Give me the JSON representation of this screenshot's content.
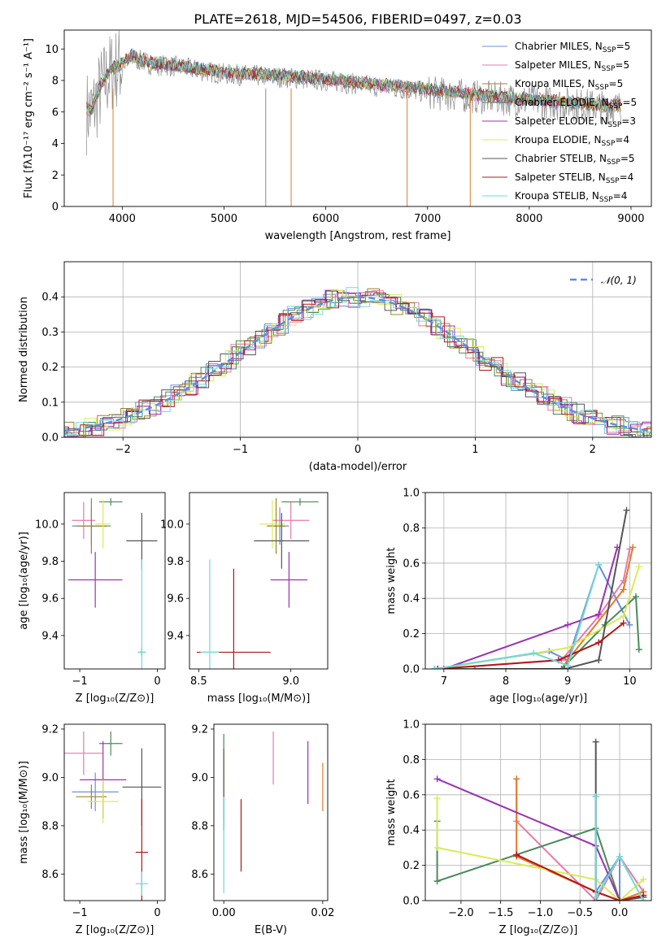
{
  "title": "PLATE=2618, MJD=54506, FIBERID=0497, z=0.03",
  "colors": {
    "Chabrier MILES": "#6b8fd6",
    "Salpeter MILES": "#e87aa8",
    "Kroupa MILES": "#a08228",
    "Chabrier ELODIE": "#4a8a5a",
    "Salpeter ELODIE": "#9a32b0",
    "Kroupa ELODIE": "#d8ec58",
    "Chabrier STELIB": "#555555",
    "Salpeter STELIB": "#b01818",
    "Kroupa STELIB": "#72d8d8",
    "orange": "#e07b2a",
    "gray": "#8c8c8c",
    "normal": "#5b8fd6"
  },
  "chart_data": [
    {
      "id": "spectrum",
      "type": "line",
      "xlabel": "wavelength [Angstrom, rest frame]",
      "ylabel": "Flux [fλ10⁻¹⁷ erg cm⁻² s⁻¹ A⁻¹]",
      "xlim": [
        3430,
        9200
      ],
      "ylim": [
        0,
        11.2
      ],
      "xticks": [
        4000,
        5000,
        6000,
        7000,
        8000,
        9000
      ],
      "yticks": [
        0,
        2,
        4,
        6,
        8,
        10
      ],
      "x": [
        3700,
        3800,
        3900,
        4000,
        4100,
        4200,
        4300,
        4500,
        4700,
        5000,
        5300,
        5600,
        6000,
        6400,
        6800,
        7200,
        7600,
        8000,
        8400,
        8800
      ],
      "series": [
        {
          "name": "Chabrier MILES, N_SSP=5",
          "color": "#6b8fd6"
        },
        {
          "name": "Salpeter MILES, N_SSP=5",
          "color": "#e87aa8"
        },
        {
          "name": "Kroupa MILES, N_SSP=5",
          "color": "#a08228"
        },
        {
          "name": "Chabrier ELODIE, N_SSP=5",
          "color": "#4a8a5a"
        },
        {
          "name": "Salpeter ELODIE, N_SSP=3",
          "color": "#9a32b0"
        },
        {
          "name": "Kroupa ELODIE, N_SSP=4",
          "color": "#d8ec58"
        },
        {
          "name": "Chabrier STELIB, N_SSP=5",
          "color": "#555555"
        },
        {
          "name": "Salpeter STELIB, N_SSP=4",
          "color": "#b01818"
        },
        {
          "name": "Kroupa STELIB, N_SSP=4",
          "color": "#72d8d8"
        }
      ],
      "model_y": [
        6.2,
        7.9,
        8.8,
        9.1,
        9.6,
        9.3,
        9.1,
        9.0,
        8.8,
        8.5,
        8.4,
        8.3,
        8.1,
        7.8,
        7.6,
        7.3,
        7.0,
        6.8,
        6.6,
        6.4
      ],
      "data_y": [
        6.0,
        7.6,
        8.6,
        9.0,
        9.4,
        9.2,
        9.0,
        8.9,
        8.7,
        8.4,
        8.3,
        8.2,
        8.0,
        7.7,
        7.4,
        7.1,
        6.9,
        6.7,
        6.5,
        6.3
      ]
    },
    {
      "id": "residuals",
      "type": "line",
      "xlabel": "(data-model)/error",
      "ylabel": "Normed distribution",
      "xlim": [
        -2.5,
        2.5
      ],
      "ylim": [
        0,
        0.5
      ],
      "xticks": [
        -2,
        -1,
        0,
        1,
        2
      ],
      "xtick_labels": [
        "−2",
        "−1",
        "0",
        "1",
        "2"
      ],
      "yticks": [
        0.0,
        0.1,
        0.2,
        0.3,
        0.4
      ],
      "legend": [
        "𝒩(0, 1)"
      ],
      "legend_position": "top-right"
    },
    {
      "id": "age-vs-Z",
      "type": "scatter",
      "xlabel": "Z [log₁₀(Z/Z⊙)]",
      "ylabel": "age  [log₁₀(age/yr)]",
      "xlim": [
        -1.2,
        0.1
      ],
      "ylim": [
        9.22,
        10.17
      ],
      "xticks": [
        -1,
        0
      ],
      "xtick_labels": [
        "−1",
        "0"
      ],
      "yticks": [
        9.4,
        9.6,
        9.8,
        10.0
      ],
      "points": [
        {
          "x": -0.85,
          "y": 9.99,
          "xerr": 0.25,
          "yerr": 0.1,
          "color": "#6b8fd6"
        },
        {
          "x": -0.95,
          "y": 10.02,
          "xerr": 0.15,
          "yerr": 0.1,
          "color": "#e87aa8"
        },
        {
          "x": -0.85,
          "y": 9.99,
          "xerr": 0.2,
          "yerr": 0.15,
          "color": "#a08228"
        },
        {
          "x": -0.6,
          "y": 10.12,
          "xerr": 0.15,
          "yerr": 0.02,
          "color": "#4a8a5a"
        },
        {
          "x": -0.8,
          "y": 9.7,
          "xerr": 0.35,
          "yerr": 0.15,
          "color": "#9a32b0"
        },
        {
          "x": -0.7,
          "y": 10.0,
          "xerr": 0.1,
          "yerr": 0.13,
          "color": "#d8ec58"
        },
        {
          "x": -0.2,
          "y": 9.91,
          "xerr": 0.2,
          "yerr": 0.15,
          "color": "#555555"
        },
        {
          "x": -0.2,
          "y": 9.31,
          "xerr": 0.05,
          "yerr": 0.02,
          "color": "#b01818"
        },
        {
          "x": -0.2,
          "y": 9.31,
          "xerr": 0.05,
          "yerr": 0.5,
          "color": "#72d8d8"
        }
      ]
    },
    {
      "id": "age-vs-mass",
      "type": "scatter",
      "xlabel": "mass [log₁₀(M/M⊙)]",
      "ylabel": "",
      "xlim": [
        8.45,
        9.2
      ],
      "ylim": [
        9.22,
        10.17
      ],
      "xticks": [
        8.5,
        9.0
      ],
      "yticks": [
        9.4,
        9.6,
        9.8,
        10.0
      ],
      "points": [
        {
          "x": 8.94,
          "y": 9.99,
          "xerr": 0.05,
          "yerr": 0.1,
          "color": "#6b8fd6"
        },
        {
          "x": 9.0,
          "y": 10.02,
          "xerr": 0.1,
          "yerr": 0.1,
          "color": "#e87aa8"
        },
        {
          "x": 8.92,
          "y": 9.99,
          "xerr": 0.05,
          "yerr": 0.15,
          "color": "#a08228"
        },
        {
          "x": 9.05,
          "y": 10.12,
          "xerr": 0.1,
          "yerr": 0.02,
          "color": "#4a8a5a"
        },
        {
          "x": 8.99,
          "y": 9.7,
          "xerr": 0.1,
          "yerr": 0.15,
          "color": "#9a32b0"
        },
        {
          "x": 8.9,
          "y": 10.0,
          "xerr": 0.07,
          "yerr": 0.13,
          "color": "#d8ec58"
        },
        {
          "x": 8.95,
          "y": 9.91,
          "xerr": 0.15,
          "yerr": 0.15,
          "color": "#555555"
        },
        {
          "x": 8.69,
          "y": 9.31,
          "xerr": 0.2,
          "yerr": 0.45,
          "color": "#b01818"
        },
        {
          "x": 8.56,
          "y": 9.31,
          "xerr": 0.05,
          "yerr": 0.5,
          "color": "#72d8d8"
        }
      ]
    },
    {
      "id": "weight-vs-age",
      "type": "line",
      "xlabel": "age  [log₁₀(age/yr)]",
      "ylabel": "mass weight",
      "xlim": [
        6.7,
        10.35
      ],
      "ylim": [
        0,
        1.0
      ],
      "xticks": [
        7,
        8,
        9,
        10
      ],
      "yticks": [
        0.0,
        0.2,
        0.4,
        0.6,
        0.8,
        1.0
      ],
      "series": [
        {
          "color": "#6b8fd6",
          "x": [
            6.85,
            8.7,
            9.0,
            9.5,
            10.0
          ],
          "y": [
            0.0,
            0.1,
            0.05,
            0.59,
            0.25
          ]
        },
        {
          "color": "#e87aa8",
          "x": [
            6.85,
            8.9,
            9.5,
            9.9,
            10.0
          ],
          "y": [
            0.0,
            0.05,
            0.3,
            0.5,
            0.68
          ]
        },
        {
          "color": "#e07b2a",
          "x": [
            6.9,
            8.9,
            9.0,
            9.9,
            10.05
          ],
          "y": [
            0.0,
            0.0,
            0.05,
            0.45,
            0.69
          ]
        },
        {
          "color": "#4a8a5a",
          "x": [
            6.9,
            8.9,
            9.6,
            10.1,
            10.15
          ],
          "y": [
            0.0,
            0.0,
            0.25,
            0.41,
            0.11
          ]
        },
        {
          "color": "#9a32b0",
          "x": [
            7.0,
            9.0,
            9.5,
            9.8
          ],
          "y": [
            0.0,
            0.25,
            0.31,
            0.69
          ]
        },
        {
          "color": "#d8ec58",
          "x": [
            6.9,
            9.0,
            9.9,
            10.15
          ],
          "y": [
            0.0,
            0.12,
            0.3,
            0.58
          ]
        },
        {
          "color": "#555555",
          "x": [
            7.5,
            8.95,
            9.5,
            9.95
          ],
          "y": [
            0.0,
            0.0,
            0.05,
            0.9
          ]
        },
        {
          "color": "#b01818",
          "x": [
            6.9,
            8.85,
            9.5,
            9.9
          ],
          "y": [
            0.0,
            0.05,
            0.15,
            0.26
          ]
        },
        {
          "color": "#72d8d8",
          "x": [
            6.85,
            8.45,
            9.0,
            9.5
          ],
          "y": [
            0.0,
            0.09,
            0.02,
            0.59
          ]
        }
      ]
    },
    {
      "id": "mass-vs-Z",
      "type": "scatter",
      "xlabel": "Z [log₁₀(Z/Z⊙)]",
      "ylabel": "mass [log₁₀(M/M⊙)]",
      "xlim": [
        -1.2,
        0.1
      ],
      "ylim": [
        8.49,
        9.22
      ],
      "xticks": [
        -1,
        0
      ],
      "xtick_labels": [
        "−1",
        "0"
      ],
      "yticks": [
        8.6,
        8.8,
        9.0,
        9.2
      ],
      "points": [
        {
          "x": -0.8,
          "y": 8.94,
          "xerr": 0.3,
          "yerr": 0.08,
          "color": "#6b8fd6"
        },
        {
          "x": -0.95,
          "y": 9.1,
          "xerr": 0.25,
          "yerr": 0.09,
          "color": "#e87aa8"
        },
        {
          "x": -0.85,
          "y": 8.92,
          "xerr": 0.2,
          "yerr": 0.05,
          "color": "#a08228"
        },
        {
          "x": -0.6,
          "y": 9.14,
          "xerr": 0.15,
          "yerr": 0.05,
          "color": "#4a8a5a"
        },
        {
          "x": -0.7,
          "y": 8.99,
          "xerr": 0.3,
          "yerr": 0.16,
          "color": "#9a32b0"
        },
        {
          "x": -0.7,
          "y": 8.9,
          "xerr": 0.2,
          "yerr": 0.09,
          "color": "#d8ec58"
        },
        {
          "x": -0.2,
          "y": 8.96,
          "xerr": 0.25,
          "yerr": 0.16,
          "color": "#555555"
        },
        {
          "x": -0.2,
          "y": 8.69,
          "xerr": 0.08,
          "yerr": 0.22,
          "color": "#b01818"
        },
        {
          "x": -0.2,
          "y": 8.56,
          "xerr": 0.08,
          "yerr": 0.05,
          "color": "#72d8d8"
        }
      ]
    },
    {
      "id": "mass-vs-EBV",
      "type": "scatter",
      "xlabel": "E(B-V)",
      "ylabel": "",
      "xlim": [
        -0.002,
        0.021
      ],
      "ylim": [
        8.49,
        9.22
      ],
      "xticks": [
        0.0,
        0.02
      ],
      "xtick_labels": [
        "0.00",
        "0.02"
      ],
      "yticks": [
        8.6,
        8.8,
        9.0,
        9.2
      ],
      "points": [
        {
          "x": 0.0,
          "y": 8.94,
          "xerr": 0,
          "yerr": 0.08,
          "color": "#6b8fd6"
        },
        {
          "x": 0.01,
          "y": 9.08,
          "xerr": 0,
          "yerr": 0.11,
          "color": "#e87aa8"
        },
        {
          "x": 0.02,
          "y": 8.96,
          "xerr": 0,
          "yerr": 0.1,
          "color": "#e07b2a"
        },
        {
          "x": 0.0,
          "y": 9.0,
          "xerr": 0,
          "yerr": 0.18,
          "color": "#4a8a5a"
        },
        {
          "x": 0.017,
          "y": 9.02,
          "xerr": 0,
          "yerr": 0.13,
          "color": "#9a32b0"
        },
        {
          "x": 0.0,
          "y": 8.99,
          "xerr": 0,
          "yerr": 0.13,
          "color": "#d8ec58"
        },
        {
          "x": 0.0,
          "y": 8.95,
          "xerr": 0,
          "yerr": 0.17,
          "color": "#555555"
        },
        {
          "x": 0.0035,
          "y": 8.76,
          "xerr": 0,
          "yerr": 0.15,
          "color": "#b01818"
        },
        {
          "x": 0.0,
          "y": 8.72,
          "xerr": 0,
          "yerr": 0.2,
          "color": "#72d8d8"
        }
      ]
    },
    {
      "id": "weight-vs-Z",
      "type": "line",
      "xlabel": "Z [log₁₀(Z/Z⊙)]",
      "ylabel": "mass weight",
      "xlim": [
        -2.45,
        0.4
      ],
      "ylim": [
        0,
        1.0
      ],
      "xticks": [
        -2.0,
        -1.5,
        -1.0,
        -0.5,
        0.0
      ],
      "xtick_labels": [
        "−2.0",
        "−1.5",
        "−1.0",
        "−0.5",
        "0.0"
      ],
      "yticks": [
        0.0,
        0.2,
        0.4,
        0.6,
        0.8,
        1.0
      ],
      "series": [
        {
          "color": "#6b8fd6",
          "x": [
            -0.3,
            -0.3,
            0.0,
            0.0,
            0.3
          ],
          "y": [
            0.59,
            0.05,
            0.25,
            0.0,
            0.02
          ]
        },
        {
          "color": "#e87aa8",
          "x": [
            -1.3,
            -1.3,
            -0.3,
            0.0,
            0.3
          ],
          "y": [
            0.69,
            0.45,
            0.0,
            0.25,
            0.05
          ]
        },
        {
          "color": "#e07b2a",
          "x": [
            -1.3,
            -1.3,
            -0.3,
            0.0,
            0.3
          ],
          "y": [
            0.69,
            0.25,
            0.05,
            0.0,
            0.05
          ]
        },
        {
          "color": "#4a8a5a",
          "x": [
            -2.3,
            -2.3,
            -0.3,
            0.0,
            0.3
          ],
          "y": [
            0.45,
            0.11,
            0.41,
            0.0,
            0.02
          ]
        },
        {
          "color": "#9a32b0",
          "x": [
            -2.3,
            -0.3,
            0.0
          ],
          "y": [
            0.69,
            0.31,
            0.0
          ]
        },
        {
          "color": "#d8ec58",
          "x": [
            -2.3,
            -2.3,
            -0.3,
            0.0,
            0.3
          ],
          "y": [
            0.58,
            0.3,
            0.12,
            0.0,
            0.12
          ]
        },
        {
          "color": "#555555",
          "x": [
            -0.3,
            -0.3,
            0.0,
            0.3
          ],
          "y": [
            0.9,
            0.0,
            0.0,
            0.02
          ]
        },
        {
          "color": "#b01818",
          "x": [
            -1.3,
            -0.3,
            0.0,
            0.3
          ],
          "y": [
            0.26,
            0.05,
            0.0,
            0.03
          ]
        },
        {
          "color": "#72d8d8",
          "x": [
            -0.3,
            -0.3,
            0.0,
            0.3
          ],
          "y": [
            0.59,
            0.02,
            0.25,
            0.0
          ]
        }
      ]
    }
  ]
}
